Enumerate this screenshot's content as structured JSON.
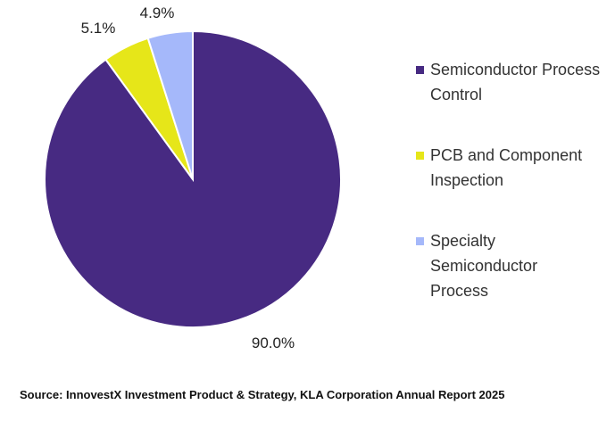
{
  "chart_data": {
    "type": "pie",
    "slices": [
      {
        "name": "Semiconductor Process Control",
        "value": 90.0,
        "label": "90.0%",
        "color": "#472a82"
      },
      {
        "name": "PCB and Component Inspection",
        "value": 5.1,
        "label": "5.1%",
        "color": "#e6e619"
      },
      {
        "name": "Specialty Semiconductor Process",
        "value": 4.9,
        "label": "4.9%",
        "color": "#a5b8fa"
      }
    ],
    "legend_position": "right"
  },
  "legend": {
    "items": [
      {
        "label": "Semiconductor Process Control",
        "color": "#472a82"
      },
      {
        "label": "PCB and Component Inspection",
        "color": "#e6e619"
      },
      {
        "label": "Specialty Semiconductor Process",
        "color": "#a5b8fa"
      }
    ]
  },
  "source": "Source: InnovestX Investment Product & Strategy, KLA Corporation Annual Report 2025"
}
